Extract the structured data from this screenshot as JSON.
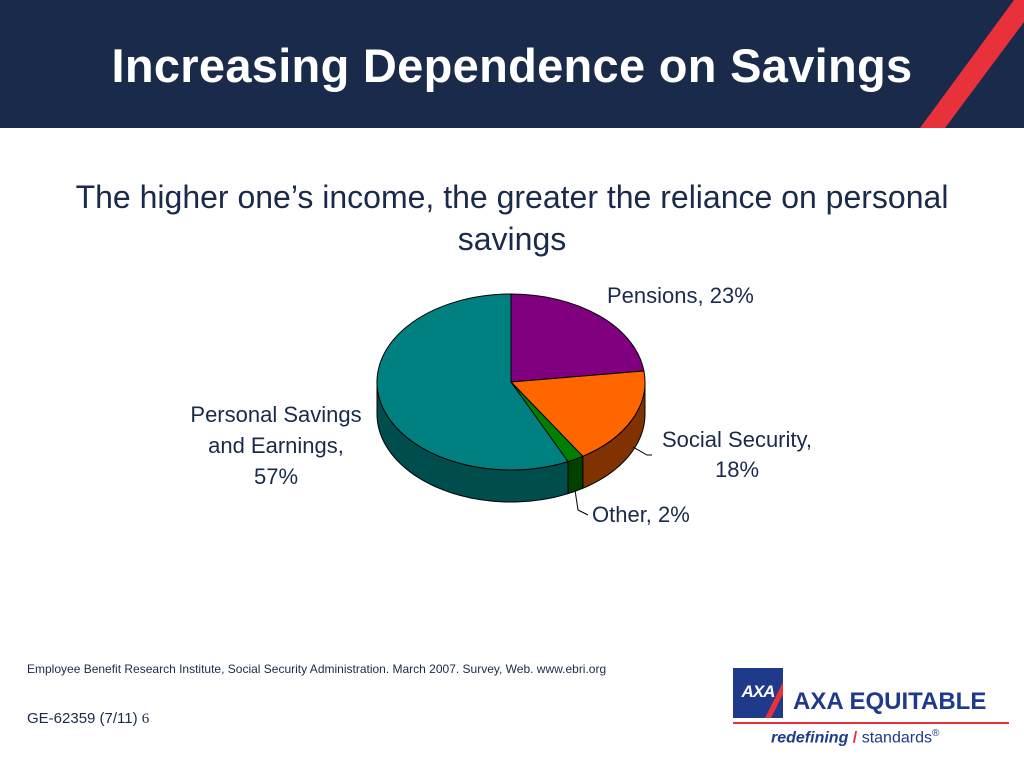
{
  "slide": {
    "title": "Increasing Dependence on Savings",
    "subtitle": "The higher one’s income, the greater the reliance on personal savings",
    "source": "Employee Benefit Research Institute, Social Security Administration. March 2007. Survey, Web.  www.ebri.org",
    "code": "GE-62359 (7/11)",
    "page_number": "6"
  },
  "logo": {
    "mark": "AXA",
    "name": "AXA EQUITABLE",
    "tagline_bold": "redefining",
    "tagline_slash": "/",
    "tagline_rest": "standards",
    "tagline_reg": "®"
  },
  "colors": {
    "header_bg": "#1a2a4a",
    "accent_red": "#e8313b",
    "brand_blue": "#1f3a8a"
  },
  "chart_data": {
    "type": "pie",
    "style": "3d",
    "title": "",
    "slices": [
      {
        "name": "Pensions",
        "value": 23,
        "label": "Pensions, 23%",
        "color": "#800080",
        "side_color": "#4d004d"
      },
      {
        "name": "Social Security",
        "value": 18,
        "label": "Social Security, 18%",
        "color": "#ff6600",
        "side_color": "#803300"
      },
      {
        "name": "Other",
        "value": 2,
        "label": "Other, 2%",
        "color": "#008000",
        "side_color": "#004000"
      },
      {
        "name": "Personal Savings and Earnings",
        "value": 57,
        "label": "Personal Savings and Earnings, 57%",
        "color": "#008080",
        "side_color": "#004d4d"
      }
    ]
  }
}
